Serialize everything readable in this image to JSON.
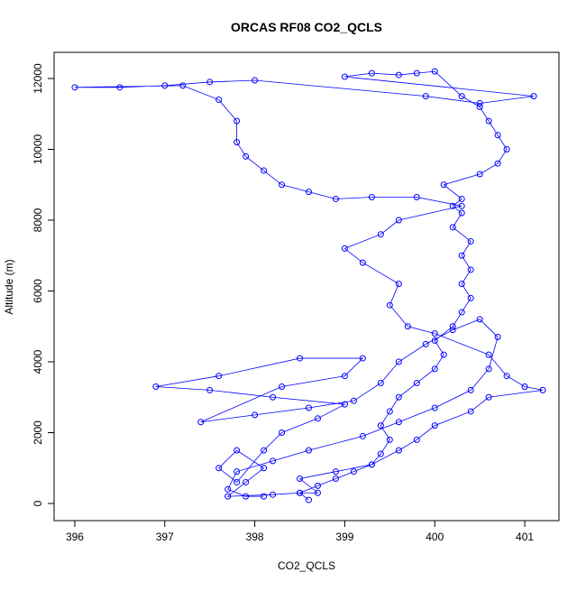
{
  "chart_data": {
    "type": "line",
    "title": "ORCAS RF08 CO2_QCLS",
    "x_label": "CO2_QCLS",
    "y_label": "Altitude (m)",
    "color": "#0000ff",
    "markers": "open-circle",
    "xlim": [
      395.77,
      401.38
    ],
    "ylim": [
      -484,
      12739
    ],
    "xticks": [
      396,
      397,
      398,
      399,
      400,
      401
    ],
    "yticks": [
      0,
      2000,
      4000,
      6000,
      8000,
      10000,
      12000
    ],
    "x": [
      398.6,
      398.5,
      398.7,
      398.9,
      399.1,
      399.3,
      399.4,
      399.5,
      399.4,
      399.5,
      399.6,
      399.8,
      400.0,
      400.1,
      400.0,
      400.2,
      400.3,
      400.4,
      400.3,
      400.4,
      400.3,
      400.4,
      400.2,
      400.3,
      400.2,
      400.3,
      400.1,
      400.5,
      400.7,
      400.8,
      400.7,
      400.6,
      400.5,
      400.3,
      400.0,
      399.8,
      399.6,
      399.3,
      399.0,
      401.1,
      400.5,
      399.9,
      398.0,
      397.5,
      397.0,
      396.5,
      396.0,
      397.2,
      397.6,
      397.8,
      397.8,
      397.9,
      398.1,
      398.3,
      398.6,
      398.9,
      399.3,
      399.8,
      400.3,
      399.6,
      399.4,
      399.0,
      399.2,
      399.6,
      399.5,
      399.7,
      400.0,
      400.6,
      400.8,
      401.0,
      401.2,
      400.6,
      400.4,
      400.0,
      399.8,
      399.6,
      399.3,
      398.9,
      398.5,
      398.7,
      398.5,
      398.2,
      397.7,
      397.9,
      398.1,
      397.8,
      397.6,
      397.8,
      398.1,
      398.3,
      398.7,
      399.0,
      398.2,
      397.5,
      396.9,
      397.6,
      398.5,
      399.2,
      399.0,
      398.3,
      397.4,
      398.0,
      398.6,
      399.1,
      399.4,
      399.6,
      399.9,
      400.2,
      400.5,
      400.7,
      400.6,
      400.4,
      400.0,
      399.6,
      399.2,
      398.6,
      398.2,
      397.8,
      397.7,
      397.9,
      398.1
    ],
    "values": [
      100,
      300,
      500,
      700,
      900,
      1100,
      1400,
      1800,
      2200,
      2600,
      3000,
      3400,
      3800,
      4200,
      4600,
      5000,
      5400,
      5800,
      6200,
      6600,
      7000,
      7400,
      7800,
      8200,
      8400,
      8600,
      9000,
      9300,
      9600,
      10000,
      10400,
      10800,
      11200,
      11500,
      12200,
      12150,
      12100,
      12150,
      12050,
      11500,
      11300,
      11500,
      11950,
      11900,
      11800,
      11750,
      11750,
      11800,
      11400,
      10800,
      10200,
      9800,
      9400,
      9000,
      8800,
      8600,
      8650,
      8650,
      8400,
      8000,
      7600,
      7200,
      6800,
      6200,
      5600,
      5000,
      4800,
      4200,
      3600,
      3300,
      3200,
      3000,
      2600,
      2200,
      1800,
      1500,
      1100,
      900,
      700,
      300,
      300,
      250,
      200,
      600,
      1000,
      1500,
      1000,
      600,
      1500,
      2000,
      2400,
      2800,
      3000,
      3200,
      3300,
      3600,
      4100,
      4100,
      3600,
      3300,
      2300,
      2500,
      2700,
      2900,
      3400,
      4000,
      4500,
      4900,
      5200,
      4700,
      3800,
      3200,
      2700,
      2300,
      1900,
      1500,
      1200,
      900,
      400,
      200,
      200
    ]
  }
}
